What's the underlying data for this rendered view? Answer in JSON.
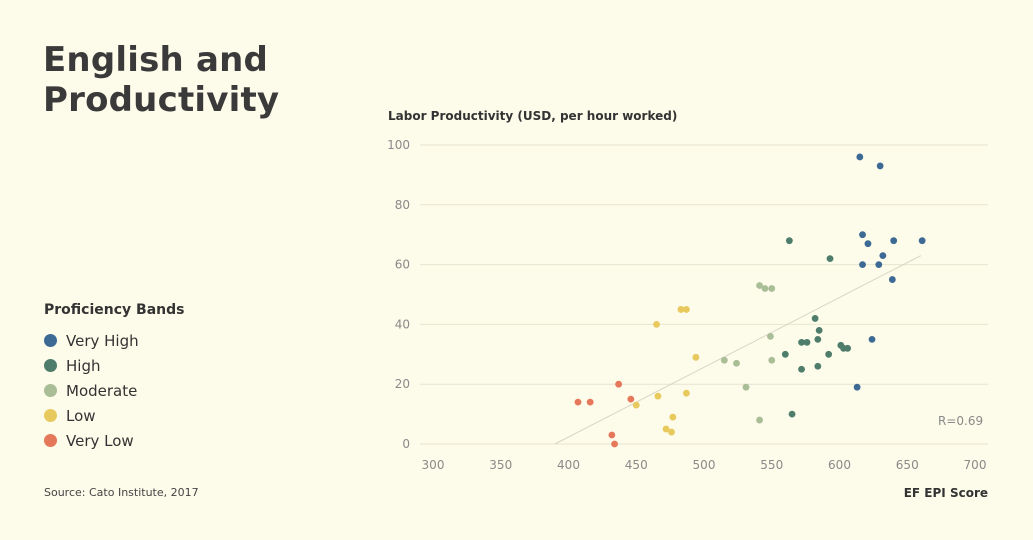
{
  "title_line1": "English and",
  "title_line2": "Productivity",
  "legend": {
    "title": "Proficiency Bands",
    "items": [
      {
        "label": "Very High",
        "color": "#3d6a94"
      },
      {
        "label": "High",
        "color": "#4f7d6c"
      },
      {
        "label": "Moderate",
        "color": "#a9bd96"
      },
      {
        "label": "Low",
        "color": "#e8c95d"
      },
      {
        "label": "Very Low",
        "color": "#e5775a"
      }
    ]
  },
  "source": "Source: Cato Institute, 2017",
  "chart_data": {
    "type": "scatter",
    "ylabel": "Labor Productivity (USD, per hour worked)",
    "xlabel": "EF EPI Score",
    "xlim": [
      300,
      700
    ],
    "ylim": [
      0,
      100
    ],
    "xticks": [
      300,
      350,
      400,
      450,
      500,
      550,
      600,
      650,
      700
    ],
    "yticks": [
      0,
      20,
      40,
      60,
      80,
      100
    ],
    "grid": "horizontal",
    "annotation": "R=0.69",
    "trendline": {
      "from": [
        390,
        0
      ],
      "to": [
        660,
        63
      ]
    },
    "series": [
      {
        "name": "Very High",
        "color": "#3d6a94",
        "points": [
          [
            615,
            96
          ],
          [
            630,
            93
          ],
          [
            617,
            70
          ],
          [
            621,
            67
          ],
          [
            632,
            63
          ],
          [
            640,
            68
          ],
          [
            661,
            68
          ],
          [
            617,
            60
          ],
          [
            629,
            60
          ],
          [
            639,
            55
          ],
          [
            624,
            35
          ],
          [
            613,
            19
          ]
        ]
      },
      {
        "name": "High",
        "color": "#4f7d6c",
        "points": [
          [
            563,
            68
          ],
          [
            593,
            62
          ],
          [
            582,
            42
          ],
          [
            585,
            38
          ],
          [
            572,
            34
          ],
          [
            576,
            34
          ],
          [
            584,
            35
          ],
          [
            601,
            33
          ],
          [
            603,
            32
          ],
          [
            606,
            32
          ],
          [
            560,
            30
          ],
          [
            592,
            30
          ],
          [
            584,
            26
          ],
          [
            572,
            25
          ],
          [
            565,
            10
          ]
        ]
      },
      {
        "name": "Moderate",
        "color": "#a9bd96",
        "points": [
          [
            541,
            53
          ],
          [
            545,
            52
          ],
          [
            550,
            52
          ],
          [
            549,
            36
          ],
          [
            550,
            28
          ],
          [
            515,
            28
          ],
          [
            524,
            27
          ],
          [
            531,
            19
          ],
          [
            541,
            8
          ]
        ]
      },
      {
        "name": "Low",
        "color": "#e8c95d",
        "points": [
          [
            465,
            40
          ],
          [
            483,
            45
          ],
          [
            487,
            45
          ],
          [
            494,
            29
          ],
          [
            487,
            17
          ],
          [
            466,
            16
          ],
          [
            450,
            13
          ],
          [
            477,
            9
          ],
          [
            472,
            5
          ],
          [
            476,
            4
          ]
        ]
      },
      {
        "name": "Very Low",
        "color": "#e5775a",
        "points": [
          [
            437,
            20
          ],
          [
            407,
            14
          ],
          [
            416,
            14
          ],
          [
            446,
            15
          ],
          [
            432,
            3
          ],
          [
            434,
            0
          ]
        ]
      }
    ]
  }
}
